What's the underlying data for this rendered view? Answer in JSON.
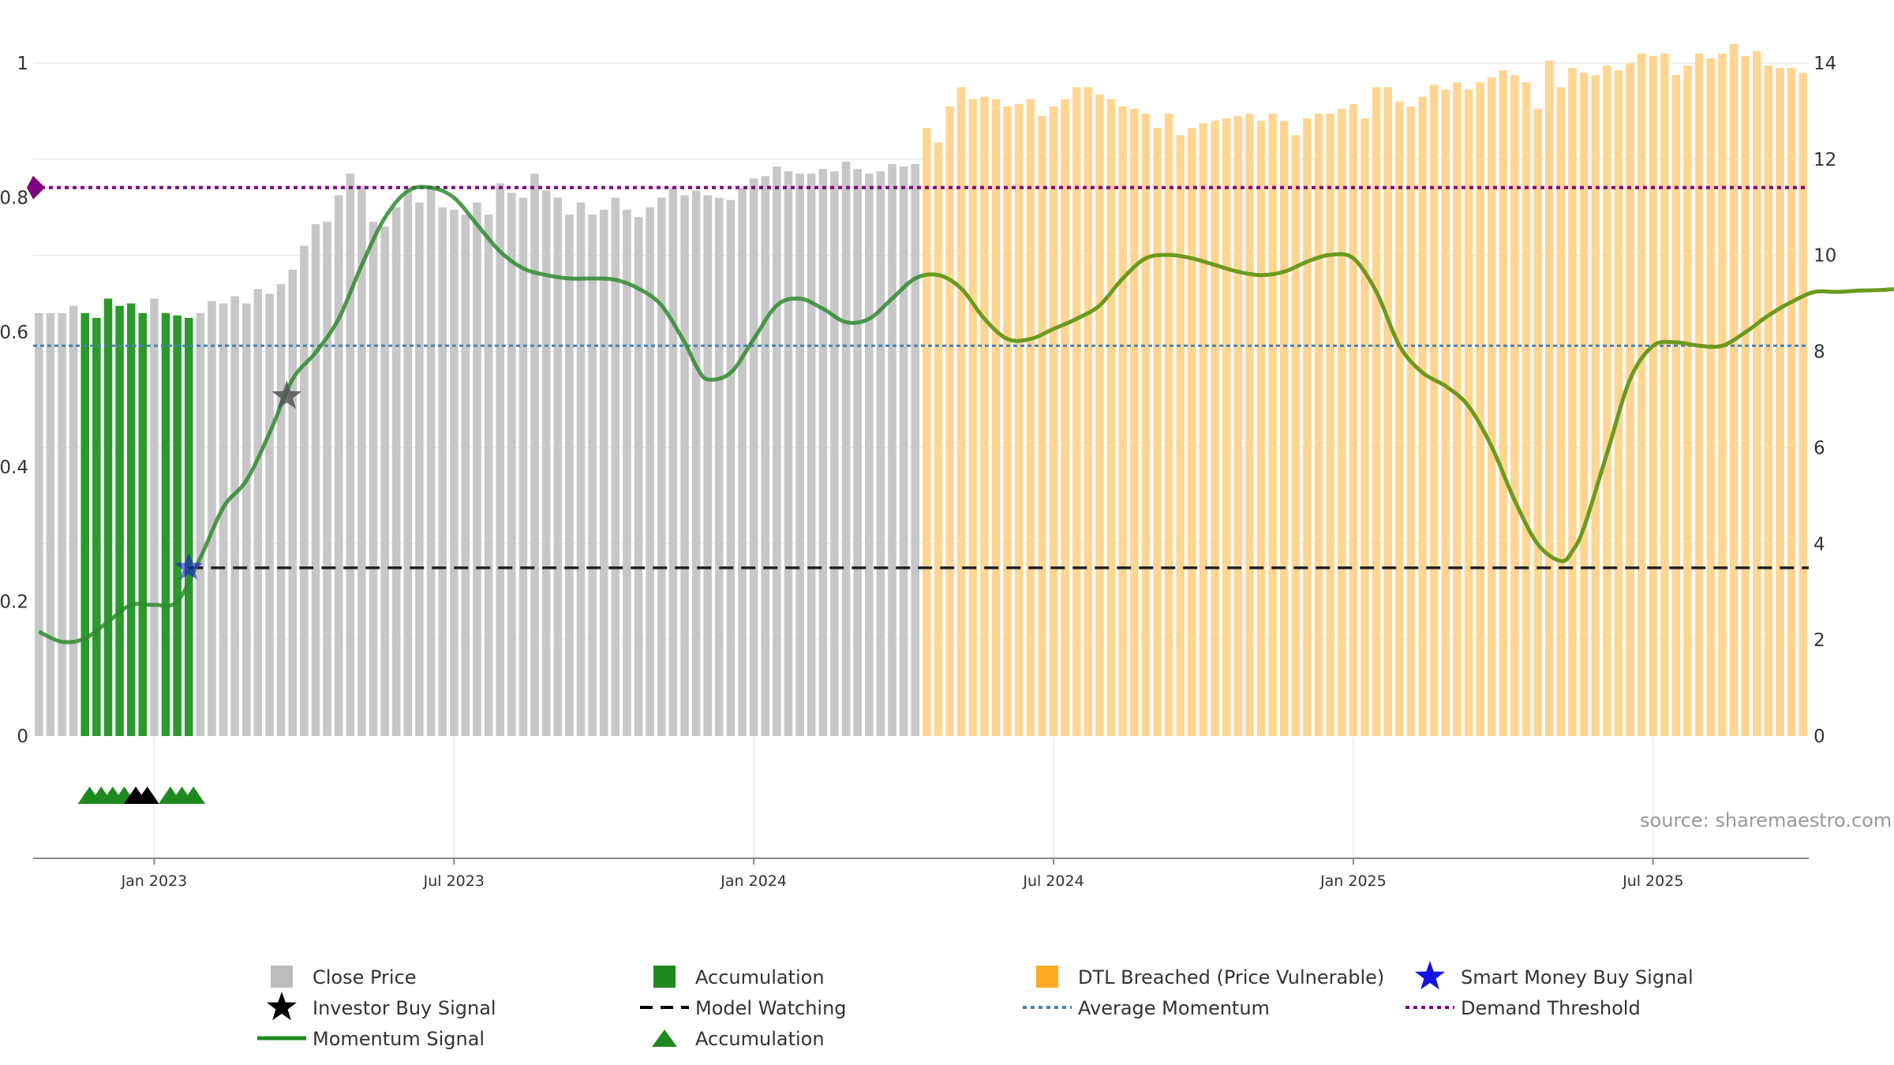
{
  "chart_data": {
    "type": "bar",
    "title": "",
    "source_text": "source: sharemaestro.com",
    "left_axis": {
      "range": [
        0,
        1
      ],
      "ticks": [
        "0",
        "0.2",
        "0.4",
        "0.6",
        "0.8",
        "1"
      ]
    },
    "right_axis": {
      "range": [
        0,
        14
      ],
      "ticks": [
        "0",
        "2",
        "4",
        "6",
        "8",
        "10",
        "12",
        "14"
      ]
    },
    "date_ticks": [
      {
        "label": "Jan 2023",
        "pos": 10
      },
      {
        "label": "Jul 2023",
        "pos": 36
      },
      {
        "label": "Jan 2024",
        "pos": 62
      },
      {
        "label": "Jul 2024",
        "pos": 88
      },
      {
        "label": "Jan 2025",
        "pos": 114
      },
      {
        "label": "Jul 2025",
        "pos": 140
      }
    ],
    "grid": true,
    "colors": {
      "close": "#c7c7c7",
      "accumulation": "#2a9a2a",
      "dtl": "#ffd591",
      "momentum": "#2e8b2e",
      "momentum_dtl": "#6b9a1f",
      "avg_momentum": "#4682b4",
      "demand": "#800080",
      "model_watching": "#222222",
      "smart_money": "#1a1ad6",
      "investor": "#555555",
      "acc_marker": "#1e8a1e"
    },
    "bars": [
      {
        "v": 8.8,
        "s": "c"
      },
      {
        "v": 8.8,
        "s": "c"
      },
      {
        "v": 8.8,
        "s": "c"
      },
      {
        "v": 8.95,
        "s": "c"
      },
      {
        "v": 8.8,
        "s": "a"
      },
      {
        "v": 8.7,
        "s": "a"
      },
      {
        "v": 9.1,
        "s": "a"
      },
      {
        "v": 8.95,
        "s": "a"
      },
      {
        "v": 9.0,
        "s": "a"
      },
      {
        "v": 8.8,
        "s": "a"
      },
      {
        "v": 9.1,
        "s": "c"
      },
      {
        "v": 8.8,
        "s": "a"
      },
      {
        "v": 8.75,
        "s": "a"
      },
      {
        "v": 8.7,
        "s": "a"
      },
      {
        "v": 8.8,
        "s": "c"
      },
      {
        "v": 9.05,
        "s": "c"
      },
      {
        "v": 9.0,
        "s": "c"
      },
      {
        "v": 9.15,
        "s": "c"
      },
      {
        "v": 9.0,
        "s": "c"
      },
      {
        "v": 9.3,
        "s": "c"
      },
      {
        "v": 9.2,
        "s": "c"
      },
      {
        "v": 9.4,
        "s": "c"
      },
      {
        "v": 9.7,
        "s": "c"
      },
      {
        "v": 10.2,
        "s": "c"
      },
      {
        "v": 10.65,
        "s": "c"
      },
      {
        "v": 10.7,
        "s": "c"
      },
      {
        "v": 11.25,
        "s": "c"
      },
      {
        "v": 11.7,
        "s": "c"
      },
      {
        "v": 11.45,
        "s": "c"
      },
      {
        "v": 10.7,
        "s": "c"
      },
      {
        "v": 10.6,
        "s": "c"
      },
      {
        "v": 11.0,
        "s": "c"
      },
      {
        "v": 11.35,
        "s": "c"
      },
      {
        "v": 11.1,
        "s": "c"
      },
      {
        "v": 11.45,
        "s": "c"
      },
      {
        "v": 11.0,
        "s": "c"
      },
      {
        "v": 10.95,
        "s": "c"
      },
      {
        "v": 10.85,
        "s": "c"
      },
      {
        "v": 11.1,
        "s": "c"
      },
      {
        "v": 10.85,
        "s": "c"
      },
      {
        "v": 11.5,
        "s": "c"
      },
      {
        "v": 11.3,
        "s": "c"
      },
      {
        "v": 11.2,
        "s": "c"
      },
      {
        "v": 11.7,
        "s": "c"
      },
      {
        "v": 11.35,
        "s": "c"
      },
      {
        "v": 11.2,
        "s": "c"
      },
      {
        "v": 10.85,
        "s": "c"
      },
      {
        "v": 11.1,
        "s": "c"
      },
      {
        "v": 10.85,
        "s": "c"
      },
      {
        "v": 10.95,
        "s": "c"
      },
      {
        "v": 11.2,
        "s": "c"
      },
      {
        "v": 10.95,
        "s": "c"
      },
      {
        "v": 10.8,
        "s": "c"
      },
      {
        "v": 11.0,
        "s": "c"
      },
      {
        "v": 11.2,
        "s": "c"
      },
      {
        "v": 11.4,
        "s": "c"
      },
      {
        "v": 11.25,
        "s": "c"
      },
      {
        "v": 11.35,
        "s": "c"
      },
      {
        "v": 11.25,
        "s": "c"
      },
      {
        "v": 11.2,
        "s": "c"
      },
      {
        "v": 11.15,
        "s": "c"
      },
      {
        "v": 11.4,
        "s": "c"
      },
      {
        "v": 11.6,
        "s": "c"
      },
      {
        "v": 11.65,
        "s": "c"
      },
      {
        "v": 11.85,
        "s": "c"
      },
      {
        "v": 11.75,
        "s": "c"
      },
      {
        "v": 11.7,
        "s": "c"
      },
      {
        "v": 11.7,
        "s": "c"
      },
      {
        "v": 11.8,
        "s": "c"
      },
      {
        "v": 11.75,
        "s": "c"
      },
      {
        "v": 11.95,
        "s": "c"
      },
      {
        "v": 11.8,
        "s": "c"
      },
      {
        "v": 11.7,
        "s": "c"
      },
      {
        "v": 11.75,
        "s": "c"
      },
      {
        "v": 11.9,
        "s": "c"
      },
      {
        "v": 11.85,
        "s": "c"
      },
      {
        "v": 11.9,
        "s": "c"
      },
      {
        "v": 12.65,
        "s": "d"
      },
      {
        "v": 12.35,
        "s": "d"
      },
      {
        "v": 13.1,
        "s": "d"
      },
      {
        "v": 13.5,
        "s": "d"
      },
      {
        "v": 13.25,
        "s": "d"
      },
      {
        "v": 13.3,
        "s": "d"
      },
      {
        "v": 13.25,
        "s": "d"
      },
      {
        "v": 13.1,
        "s": "d"
      },
      {
        "v": 13.15,
        "s": "d"
      },
      {
        "v": 13.25,
        "s": "d"
      },
      {
        "v": 12.9,
        "s": "d"
      },
      {
        "v": 13.1,
        "s": "d"
      },
      {
        "v": 13.25,
        "s": "d"
      },
      {
        "v": 13.5,
        "s": "d"
      },
      {
        "v": 13.5,
        "s": "d"
      },
      {
        "v": 13.35,
        "s": "d"
      },
      {
        "v": 13.25,
        "s": "d"
      },
      {
        "v": 13.1,
        "s": "d"
      },
      {
        "v": 13.05,
        "s": "d"
      },
      {
        "v": 12.95,
        "s": "d"
      },
      {
        "v": 12.65,
        "s": "d"
      },
      {
        "v": 12.95,
        "s": "d"
      },
      {
        "v": 12.5,
        "s": "d"
      },
      {
        "v": 12.65,
        "s": "d"
      },
      {
        "v": 12.75,
        "s": "d"
      },
      {
        "v": 12.8,
        "s": "d"
      },
      {
        "v": 12.85,
        "s": "d"
      },
      {
        "v": 12.9,
        "s": "d"
      },
      {
        "v": 12.95,
        "s": "d"
      },
      {
        "v": 12.8,
        "s": "d"
      },
      {
        "v": 12.95,
        "s": "d"
      },
      {
        "v": 12.8,
        "s": "d"
      },
      {
        "v": 12.5,
        "s": "d"
      },
      {
        "v": 12.85,
        "s": "d"
      },
      {
        "v": 12.95,
        "s": "d"
      },
      {
        "v": 12.95,
        "s": "d"
      },
      {
        "v": 13.05,
        "s": "d"
      },
      {
        "v": 13.15,
        "s": "d"
      },
      {
        "v": 12.85,
        "s": "d"
      },
      {
        "v": 13.5,
        "s": "d"
      },
      {
        "v": 13.5,
        "s": "d"
      },
      {
        "v": 13.2,
        "s": "d"
      },
      {
        "v": 13.1,
        "s": "d"
      },
      {
        "v": 13.3,
        "s": "d"
      },
      {
        "v": 13.55,
        "s": "d"
      },
      {
        "v": 13.45,
        "s": "d"
      },
      {
        "v": 13.6,
        "s": "d"
      },
      {
        "v": 13.45,
        "s": "d"
      },
      {
        "v": 13.6,
        "s": "d"
      },
      {
        "v": 13.7,
        "s": "d"
      },
      {
        "v": 13.85,
        "s": "d"
      },
      {
        "v": 13.75,
        "s": "d"
      },
      {
        "v": 13.6,
        "s": "d"
      },
      {
        "v": 13.05,
        "s": "d"
      },
      {
        "v": 14.05,
        "s": "d"
      },
      {
        "v": 13.5,
        "s": "d"
      },
      {
        "v": 13.9,
        "s": "d"
      },
      {
        "v": 13.8,
        "s": "d"
      },
      {
        "v": 13.75,
        "s": "d"
      },
      {
        "v": 13.95,
        "s": "d"
      },
      {
        "v": 13.85,
        "s": "d"
      },
      {
        "v": 14.0,
        "s": "d"
      },
      {
        "v": 14.2,
        "s": "d"
      },
      {
        "v": 14.15,
        "s": "d"
      },
      {
        "v": 14.2,
        "s": "d"
      },
      {
        "v": 13.75,
        "s": "d"
      },
      {
        "v": 13.95,
        "s": "d"
      },
      {
        "v": 14.2,
        "s": "d"
      },
      {
        "v": 14.1,
        "s": "d"
      },
      {
        "v": 14.2,
        "s": "d"
      },
      {
        "v": 14.4,
        "s": "d"
      },
      {
        "v": 14.15,
        "s": "d"
      },
      {
        "v": 14.25,
        "s": "d"
      },
      {
        "v": 13.95,
        "s": "d"
      },
      {
        "v": 13.9,
        "s": "d"
      },
      {
        "v": 13.9,
        "s": "d"
      },
      {
        "v": 13.8,
        "s": "d"
      }
    ],
    "momentum": [
      [
        0,
        0.155
      ],
      [
        2,
        0.14
      ],
      [
        4,
        0.145
      ],
      [
        6,
        0.17
      ],
      [
        8,
        0.195
      ],
      [
        10,
        0.195
      ],
      [
        12,
        0.2
      ],
      [
        14,
        0.265
      ],
      [
        16,
        0.34
      ],
      [
        18,
        0.38
      ],
      [
        20,
        0.45
      ],
      [
        22,
        0.53
      ],
      [
        24,
        0.57
      ],
      [
        26,
        0.62
      ],
      [
        28,
        0.7
      ],
      [
        30,
        0.77
      ],
      [
        32,
        0.81
      ],
      [
        34,
        0.815
      ],
      [
        36,
        0.8
      ],
      [
        38,
        0.76
      ],
      [
        40,
        0.72
      ],
      [
        42,
        0.695
      ],
      [
        44,
        0.685
      ],
      [
        46,
        0.68
      ],
      [
        48,
        0.68
      ],
      [
        50,
        0.678
      ],
      [
        52,
        0.665
      ],
      [
        54,
        0.64
      ],
      [
        56,
        0.585
      ],
      [
        57,
        0.55
      ],
      [
        58,
        0.53
      ],
      [
        60,
        0.54
      ],
      [
        62,
        0.59
      ],
      [
        64,
        0.64
      ],
      [
        66,
        0.65
      ],
      [
        68,
        0.635
      ],
      [
        70,
        0.615
      ],
      [
        72,
        0.62
      ],
      [
        74,
        0.65
      ],
      [
        76,
        0.68
      ],
      [
        78,
        0.685
      ],
      [
        80,
        0.665
      ],
      [
        82,
        0.62
      ],
      [
        84,
        0.59
      ],
      [
        86,
        0.59
      ],
      [
        88,
        0.605
      ],
      [
        90,
        0.62
      ],
      [
        92,
        0.64
      ],
      [
        94,
        0.68
      ],
      [
        96,
        0.71
      ],
      [
        98,
        0.715
      ],
      [
        100,
        0.71
      ],
      [
        102,
        0.7
      ],
      [
        104,
        0.69
      ],
      [
        106,
        0.685
      ],
      [
        108,
        0.69
      ],
      [
        110,
        0.705
      ],
      [
        112,
        0.715
      ],
      [
        114,
        0.71
      ],
      [
        116,
        0.66
      ],
      [
        118,
        0.58
      ],
      [
        120,
        0.54
      ],
      [
        122,
        0.52
      ],
      [
        124,
        0.49
      ],
      [
        126,
        0.43
      ],
      [
        128,
        0.35
      ],
      [
        130,
        0.285
      ],
      [
        132,
        0.26
      ],
      [
        133,
        0.275
      ],
      [
        134,
        0.31
      ],
      [
        136,
        0.42
      ],
      [
        138,
        0.53
      ],
      [
        140,
        0.58
      ],
      [
        142,
        0.585
      ],
      [
        144,
        0.58
      ],
      [
        146,
        0.58
      ],
      [
        148,
        0.6
      ],
      [
        150,
        0.625
      ],
      [
        152,
        0.645
      ],
      [
        154,
        0.66
      ],
      [
        156,
        0.66
      ],
      [
        158,
        0.662
      ],
      [
        160,
        0.663
      ],
      [
        162,
        0.666
      ],
      [
        164,
        0.671
      ],
      [
        166,
        0.675
      ],
      [
        168,
        0.675
      ],
      [
        170,
        0.672
      ],
      [
        172,
        0.67
      ],
      [
        174,
        0.669
      ],
      [
        176,
        0.668
      ],
      [
        177,
        0.665
      ],
      [
        178,
        0.71
      ],
      [
        179,
        0.72
      ],
      [
        180,
        0.67
      ],
      [
        181,
        0.665
      ],
      [
        182,
        0.67
      ]
    ],
    "avg_momentum": 0.58,
    "demand_threshold": 0.815,
    "model_watching": {
      "level": 0.25,
      "from": 13
    },
    "smart_money_buy": {
      "x": 13,
      "y": 0.25
    },
    "investor_buy": {
      "x": 21.5,
      "y": 0.505
    },
    "accumulation_markers": [
      {
        "x": 4.4,
        "type": "acc"
      },
      {
        "x": 5.4,
        "type": "acc"
      },
      {
        "x": 6.4,
        "type": "acc"
      },
      {
        "x": 7.4,
        "type": "acc"
      },
      {
        "x": 8.4,
        "type": "investor"
      },
      {
        "x": 9.4,
        "type": "investor"
      },
      {
        "x": 11.4,
        "type": "acc"
      },
      {
        "x": 12.4,
        "type": "acc"
      },
      {
        "x": 13.4,
        "type": "acc"
      }
    ],
    "legend": [
      {
        "label": "Close Price",
        "symbol": "square",
        "color": "#bbbbbb",
        "col": 0,
        "row": 0
      },
      {
        "label": "Investor Buy Signal",
        "symbol": "star",
        "color": "#000000",
        "col": 0,
        "row": 1
      },
      {
        "label": "Momentum Signal",
        "symbol": "line",
        "color": "#1e8a1e",
        "col": 0,
        "row": 2
      },
      {
        "label": "Accumulation",
        "symbol": "square",
        "color": "#1e8a1e",
        "col": 1,
        "row": 0
      },
      {
        "label": "Model Watching",
        "symbol": "dash",
        "color": "#000000",
        "col": 1,
        "row": 1
      },
      {
        "label": "Accumulation",
        "symbol": "triangle",
        "color": "#1e8a1e",
        "col": 1,
        "row": 2
      },
      {
        "label": "DTL Breached (Price Vulnerable)",
        "symbol": "square",
        "color": "#ffaa22",
        "col": 2,
        "row": 0
      },
      {
        "label": "Average Momentum",
        "symbol": "dot-blue",
        "color": "#4682b4",
        "col": 2,
        "row": 1
      },
      {
        "label": "Smart Money Buy Signal",
        "symbol": "star",
        "color": "#1414e0",
        "col": 3,
        "row": 0
      },
      {
        "label": "Demand Threshold",
        "symbol": "dot",
        "color": "#800080",
        "col": 3,
        "row": 1
      }
    ]
  }
}
